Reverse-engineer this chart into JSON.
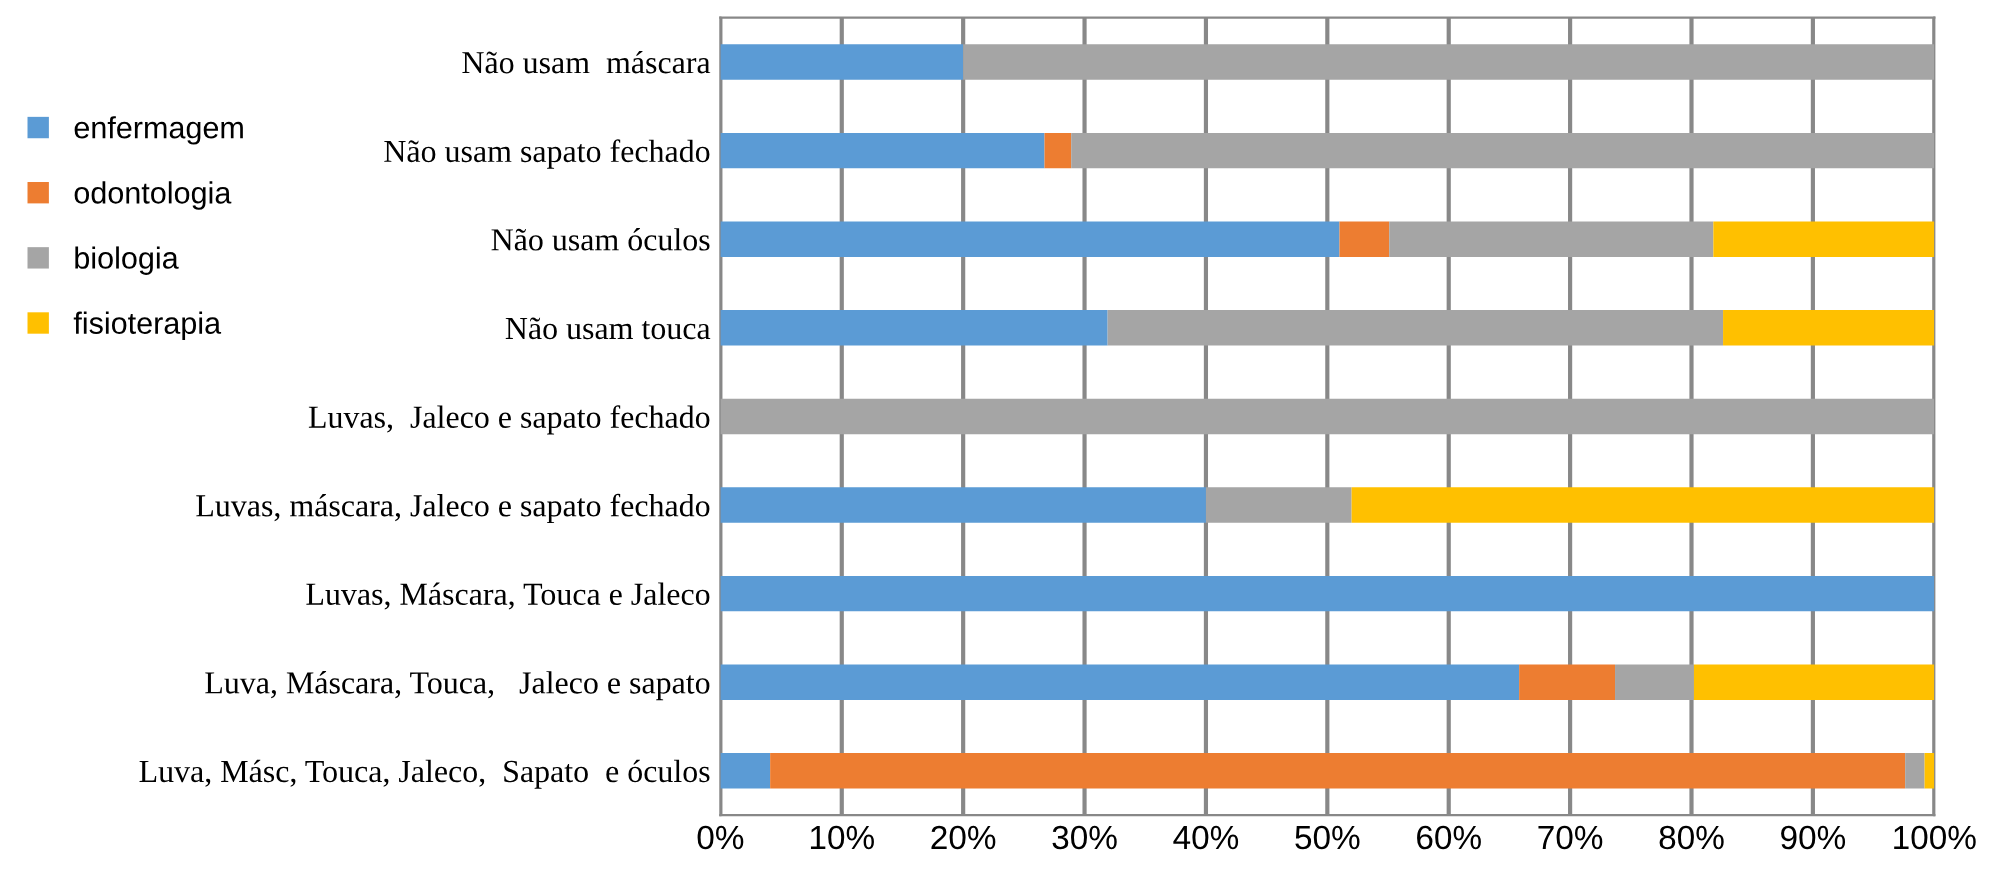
{
  "chart_data": {
    "type": "bar",
    "orientation": "horizontal",
    "stacked": true,
    "categories": [
      "Não usam  máscara",
      "Não usam sapato fechado",
      "Não usam óculos",
      "Não usam touca",
      "Luvas,  Jaleco e sapato fechado",
      "Luvas, máscara, Jaleco e sapato fechado",
      "Luvas, Máscara, Touca e Jaleco",
      "Luva, Máscara, Touca,   Jaleco e sapato",
      "Luva, Másc, Touca, Jaleco,  Sapato  e óculos"
    ],
    "series": [
      {
        "name": "enfermagem",
        "color": "#5b9bd5",
        "values": [
          20,
          26.7,
          51.0,
          31.9,
          0,
          40.0,
          100,
          65.8,
          4.1
        ]
      },
      {
        "name": "odontologia",
        "color": "#ed7d31",
        "values": [
          0,
          2.2,
          4.1,
          0,
          0,
          0,
          0,
          7.9,
          93.5
        ]
      },
      {
        "name": "biologia",
        "color": "#a5a5a5",
        "values": [
          80,
          71.1,
          26.7,
          50.7,
          100,
          12.0,
          0,
          6.5,
          1.6
        ]
      },
      {
        "name": "fisioterapia",
        "color": "#ffc000",
        "values": [
          0,
          0,
          18.2,
          17.4,
          0,
          48.0,
          0,
          19.8,
          0.8
        ]
      }
    ],
    "xlim": [
      0,
      100
    ],
    "xticks": [
      {
        "value": 0,
        "label": "0%"
      },
      {
        "value": 10,
        "label": "10%"
      },
      {
        "value": 20,
        "label": "20%"
      },
      {
        "value": 30,
        "label": "30%"
      },
      {
        "value": 40,
        "label": "40%"
      },
      {
        "value": 50,
        "label": "50%"
      },
      {
        "value": 60,
        "label": "60%"
      },
      {
        "value": 70,
        "label": "70%"
      },
      {
        "value": 80,
        "label": "80%"
      },
      {
        "value": 90,
        "label": "90%"
      },
      {
        "value": 100,
        "label": "100%"
      }
    ],
    "grid": "x",
    "legend": "top left"
  }
}
